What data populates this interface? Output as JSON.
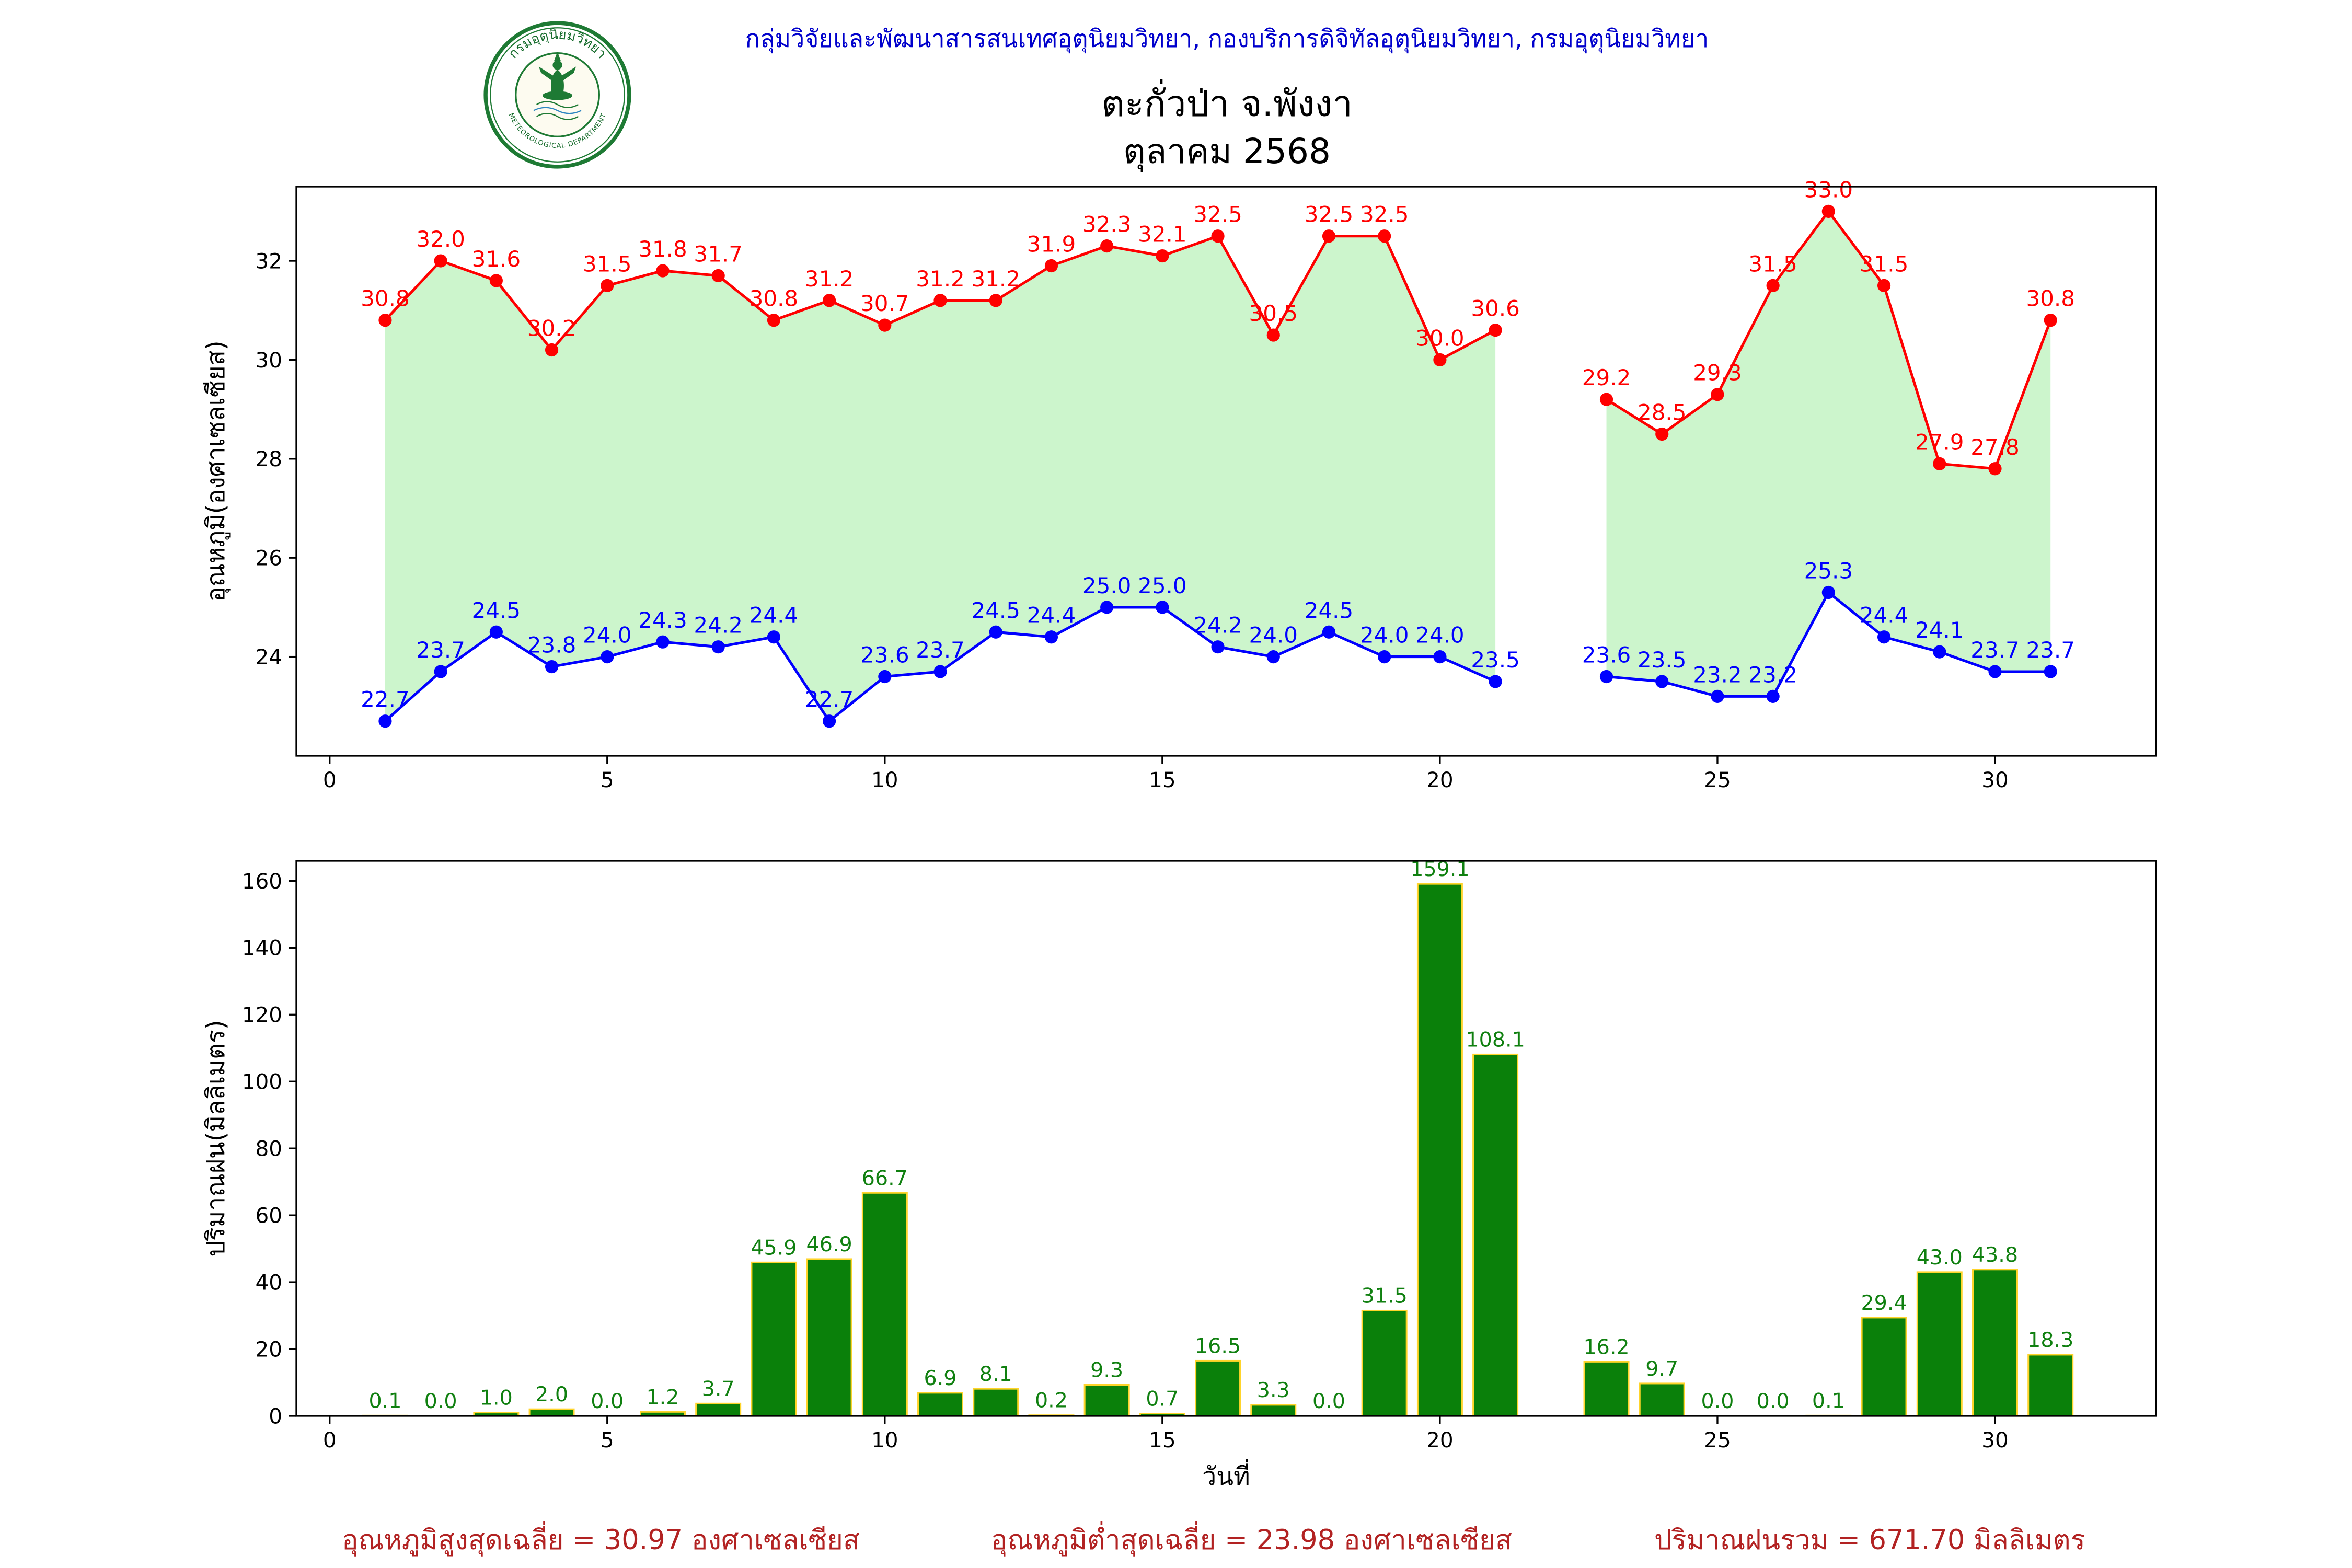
{
  "header": {
    "agency_line": "กลุ่มวิจัยและพัฒนาสารสนเทศอุตุนิยมวิทยา, กองบริการดิจิทัลอุตุนิยมวิทยา, กรมอุตุนิยมวิทยา",
    "station_title": "ตะกั่วป่า จ.พังงา",
    "month_title": "ตุลาคม 2568",
    "logo_top_text": "กรมอุตุนิยมวิทยา",
    "logo_bottom_text": "METEOROLOGICAL DEPARTMENT"
  },
  "footer": {
    "max_avg": "อุณหภูมิสูงสุดเฉลี่ย = 30.97 องศาเซลเซียส",
    "min_avg": "อุณหภูมิต่ำสุดเฉลี่ย = 23.98 องศาเซลเซียส",
    "rain_total": "ปริมาณฝนรวม = 671.70 มิลลิเมตร"
  },
  "chart_data": [
    {
      "type": "line",
      "title": "",
      "xlabel": "",
      "ylabel": "อุณหภูมิ(องศาเซลเซียส)",
      "x": [
        1,
        2,
        3,
        4,
        5,
        6,
        7,
        8,
        9,
        10,
        11,
        12,
        13,
        14,
        15,
        16,
        17,
        18,
        19,
        20,
        21,
        23,
        24,
        25,
        26,
        27,
        28,
        29,
        30,
        31
      ],
      "series": [
        {
          "name": "max_temperature",
          "color": "#ff0000",
          "values": [
            30.8,
            32.0,
            31.6,
            30.2,
            31.5,
            31.8,
            31.7,
            30.8,
            31.2,
            30.7,
            31.2,
            31.2,
            31.9,
            32.3,
            32.1,
            32.5,
            30.5,
            32.5,
            32.5,
            30.0,
            30.6,
            29.2,
            28.5,
            29.3,
            31.5,
            33.0,
            31.5,
            27.9,
            27.8,
            30.8
          ]
        },
        {
          "name": "min_temperature",
          "color": "#0000ff",
          "values": [
            22.7,
            23.7,
            24.5,
            23.8,
            24.0,
            24.3,
            24.2,
            24.4,
            22.7,
            23.6,
            23.7,
            24.5,
            24.4,
            25.0,
            25.0,
            24.2,
            24.0,
            24.5,
            24.0,
            24.0,
            23.5,
            23.6,
            23.5,
            23.2,
            23.2,
            25.3,
            24.4,
            24.1,
            23.7,
            23.7
          ]
        }
      ],
      "fill_between_color": "#ccf5cc",
      "xlim": [
        -0.6,
        32.9
      ],
      "ylim": [
        22.0,
        33.5
      ],
      "xticks": [
        0,
        5,
        10,
        15,
        20,
        25,
        30
      ],
      "yticks": [
        24,
        26,
        28,
        30,
        32
      ],
      "grid": false,
      "note": "day 22 has no data (gap in both lines and shading)"
    },
    {
      "type": "bar",
      "title": "",
      "xlabel": "วันที่",
      "ylabel": "ปริมาณฝน(มิลลิเมตร)",
      "x": [
        1,
        2,
        3,
        4,
        5,
        6,
        7,
        8,
        9,
        10,
        11,
        12,
        13,
        14,
        15,
        16,
        17,
        18,
        19,
        20,
        21,
        23,
        24,
        25,
        26,
        27,
        28,
        29,
        30,
        31
      ],
      "values": [
        0.1,
        0.0,
        1.0,
        2.0,
        0.0,
        1.2,
        3.7,
        45.9,
        46.9,
        66.7,
        6.9,
        8.1,
        0.2,
        9.3,
        0.7,
        16.5,
        3.3,
        0.0,
        31.5,
        159.1,
        108.1,
        16.2,
        9.7,
        0.0,
        0.0,
        0.1,
        29.4,
        43.0,
        43.8,
        18.3
      ],
      "bar_color": "#0a800a",
      "bar_edge_color": "#ffd42a",
      "label_color": "#108010",
      "xlim": [
        -0.6,
        32.9
      ],
      "ylim": [
        0,
        166
      ],
      "xticks": [
        0,
        5,
        10,
        15,
        20,
        25,
        30
      ],
      "yticks": [
        0,
        20,
        40,
        60,
        80,
        100,
        120,
        140,
        160
      ],
      "grid": false,
      "note": "day 22 has no bar or label"
    }
  ]
}
